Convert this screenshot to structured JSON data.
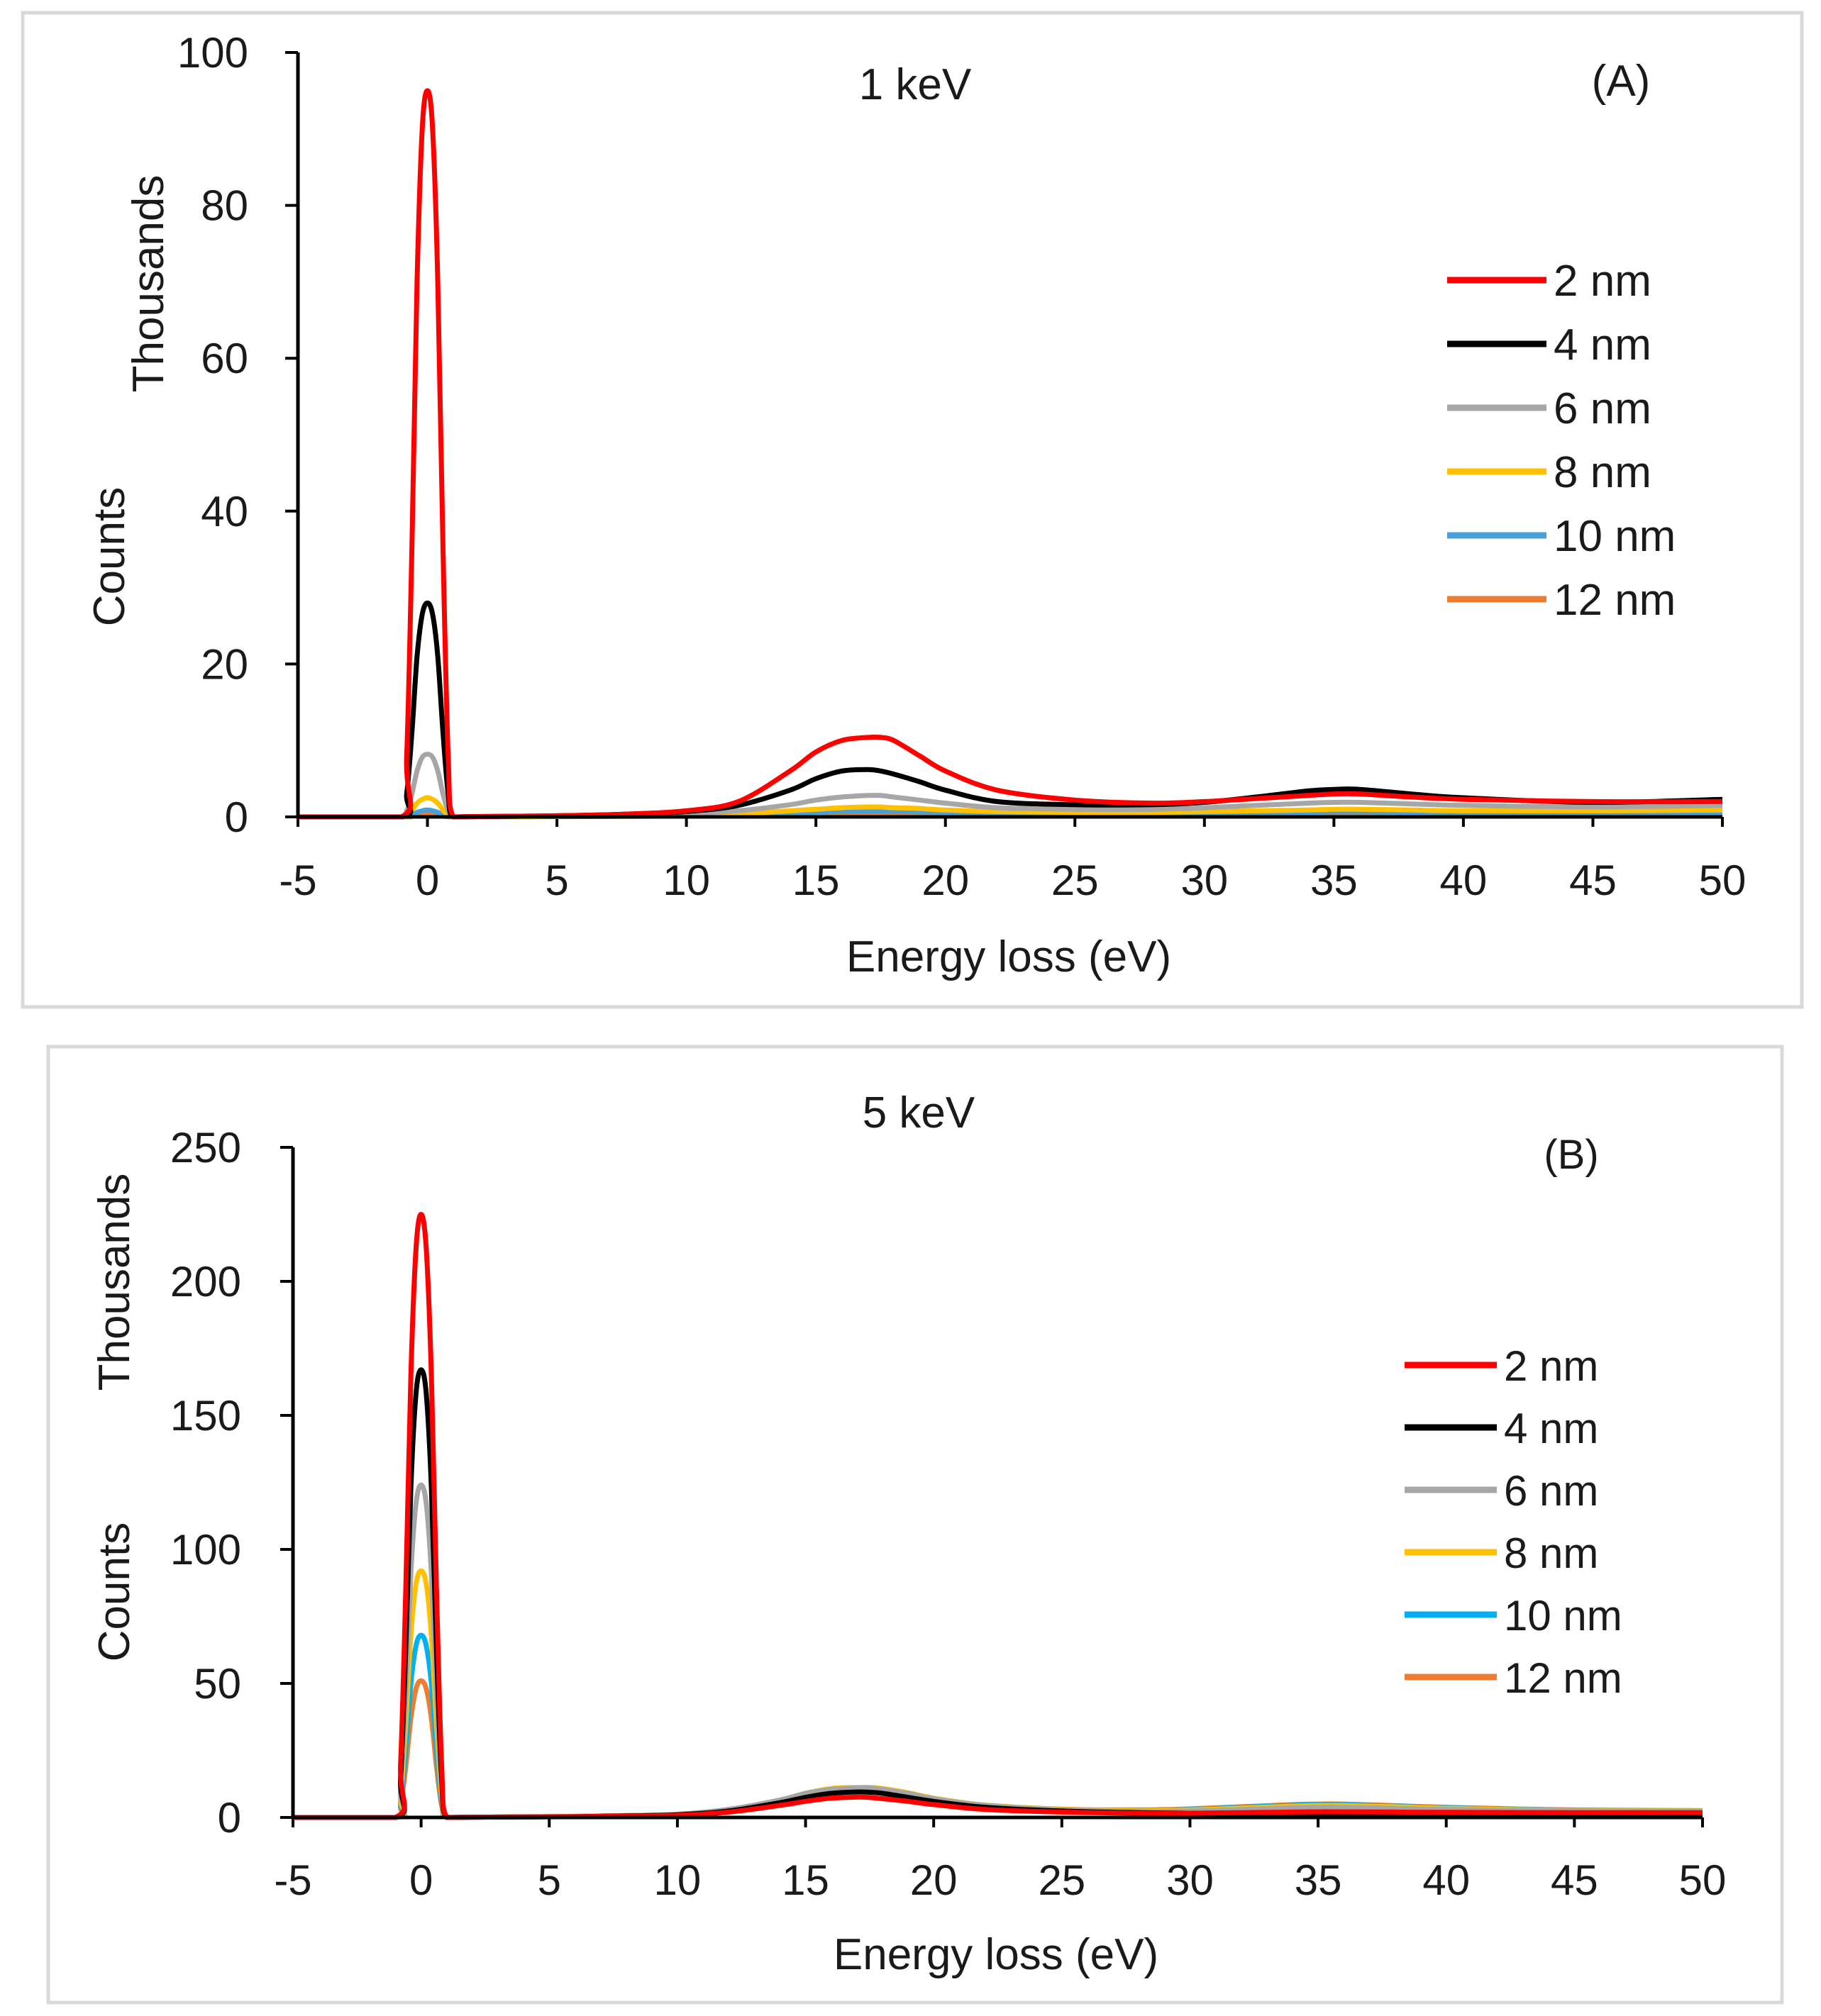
{
  "chart_data": [
    {
      "type": "line",
      "title": "1 keV",
      "panel_label": "(A)",
      "xlabel": "Energy loss (eV)",
      "ylabel": "Counts",
      "y_unit_label": "Thousands",
      "xlim": [
        -5,
        50
      ],
      "ylim": [
        0,
        100
      ],
      "xticks": [
        "-5",
        "0",
        "5",
        "10",
        "15",
        "20",
        "25",
        "30",
        "35",
        "40",
        "45",
        "50"
      ],
      "yticks": [
        "0",
        "20",
        "40",
        "60",
        "80",
        "100"
      ],
      "grid": false,
      "legend_position": "right",
      "x": [
        -5,
        -1,
        -0.8,
        -0.6,
        -0.4,
        -0.2,
        0,
        0.2,
        0.4,
        0.6,
        0.8,
        1,
        2,
        4,
        6,
        8,
        10,
        12,
        14,
        15,
        16,
        17,
        17.5,
        18,
        19,
        20,
        22,
        25,
        28,
        30,
        32,
        34,
        35,
        36,
        38,
        40,
        45,
        50
      ],
      "series": [
        {
          "name": "2 nm",
          "color": "#ff0000",
          "values": [
            0,
            0,
            8,
            35,
            70,
            90,
            95,
            90,
            70,
            35,
            8,
            0,
            0.05,
            0.1,
            0.2,
            0.4,
            0.8,
            2,
            6,
            8.5,
            10,
            10.4,
            10.4,
            10,
            8,
            6,
            3.5,
            2.2,
            1.8,
            2,
            2.4,
            2.8,
            3,
            3,
            2.6,
            2.3,
            2,
            2
          ]
        },
        {
          "name": "4 nm",
          "color": "#000000",
          "values": [
            0,
            0,
            3,
            11,
            21,
            26.5,
            28,
            26.5,
            21,
            11,
            3,
            0,
            0.05,
            0.1,
            0.2,
            0.4,
            0.7,
            1.5,
            3.5,
            5,
            6,
            6.2,
            6,
            5.6,
            4.6,
            3.5,
            2,
            1.6,
            1.6,
            1.9,
            2.6,
            3.4,
            3.6,
            3.6,
            3,
            2.5,
            1.9,
            2.3
          ]
        },
        {
          "name": "6 nm",
          "color": "#a6a6a6",
          "values": [
            0,
            0,
            0.8,
            3,
            6,
            7.8,
            8.2,
            7.8,
            6,
            3,
            0.8,
            0,
            0.05,
            0.1,
            0.1,
            0.2,
            0.4,
            0.8,
            1.6,
            2.2,
            2.6,
            2.8,
            2.8,
            2.6,
            2.2,
            1.8,
            1.2,
            1,
            1,
            1.2,
            1.5,
            1.8,
            1.9,
            1.9,
            1.7,
            1.5,
            1.3,
            1.5
          ]
        },
        {
          "name": "8 nm",
          "color": "#ffc000",
          "values": [
            0,
            0,
            0.2,
            0.9,
            1.8,
            2.3,
            2.5,
            2.3,
            1.8,
            0.9,
            0.2,
            0,
            0.02,
            0.05,
            0.08,
            0.1,
            0.2,
            0.4,
            0.8,
            1,
            1.2,
            1.3,
            1.3,
            1.2,
            1.1,
            0.9,
            0.7,
            0.6,
            0.6,
            0.7,
            0.8,
            0.9,
            1,
            1,
            0.9,
            0.8,
            0.8,
            0.9
          ]
        },
        {
          "name": "10 nm",
          "color": "#4a9fd6",
          "values": [
            0,
            0,
            0.05,
            0.3,
            0.6,
            0.8,
            0.9,
            0.8,
            0.6,
            0.3,
            0.05,
            0,
            0.02,
            0.04,
            0.06,
            0.1,
            0.15,
            0.3,
            0.5,
            0.6,
            0.7,
            0.75,
            0.75,
            0.7,
            0.65,
            0.6,
            0.5,
            0.45,
            0.45,
            0.5,
            0.55,
            0.6,
            0.65,
            0.65,
            0.6,
            0.55,
            0.55,
            0.6
          ]
        },
        {
          "name": "12 nm",
          "color": "#ed7d31",
          "values": [
            0,
            0,
            0.02,
            0.1,
            0.25,
            0.35,
            0.4,
            0.35,
            0.25,
            0.1,
            0.02,
            0,
            0.01,
            0.03,
            0.05,
            0.08,
            0.1,
            0.2,
            0.35,
            0.4,
            0.45,
            0.5,
            0.5,
            0.48,
            0.45,
            0.42,
            0.38,
            0.35,
            0.35,
            0.38,
            0.42,
            0.45,
            0.48,
            0.48,
            0.45,
            0.42,
            0.4,
            0.42
          ]
        }
      ]
    },
    {
      "type": "line",
      "title": "5 keV",
      "panel_label": "(B)",
      "xlabel": "Energy loss (eV)",
      "ylabel": "Counts",
      "y_unit_label": "Thousands",
      "xlim": [
        -5,
        50
      ],
      "ylim": [
        0,
        250
      ],
      "xticks": [
        "-5",
        "0",
        "5",
        "10",
        "15",
        "20",
        "25",
        "30",
        "35",
        "40",
        "45",
        "50"
      ],
      "yticks": [
        "0",
        "50",
        "100",
        "150",
        "200",
        "250"
      ],
      "grid": false,
      "legend_position": "right",
      "x": [
        -5,
        -1,
        -0.8,
        -0.6,
        -0.4,
        -0.2,
        0,
        0.2,
        0.4,
        0.6,
        0.8,
        1,
        2,
        4,
        6,
        8,
        10,
        12,
        14,
        15,
        16,
        17,
        17.5,
        18,
        19,
        20,
        22,
        25,
        28,
        30,
        32,
        34,
        35,
        36,
        38,
        40,
        45,
        50
      ],
      "series": [
        {
          "name": "2 nm",
          "color": "#ff0000",
          "values": [
            0,
            0,
            20,
            85,
            165,
            212,
            225,
            212,
            165,
            85,
            20,
            0,
            0.1,
            0.2,
            0.3,
            0.5,
            0.8,
            2,
            4.5,
            6,
            7.2,
            7.6,
            7.5,
            7,
            6,
            4.8,
            3,
            2,
            1.6,
            1.6,
            1.8,
            2,
            2.1,
            2.1,
            2,
            1.9,
            1.8,
            1.8
          ]
        },
        {
          "name": "4 nm",
          "color": "#000000",
          "values": [
            0,
            0,
            15,
            63,
            123,
            158,
            167,
            158,
            123,
            63,
            15,
            0,
            0.1,
            0.2,
            0.3,
            0.6,
            1,
            2.4,
            5.5,
            7.5,
            9,
            9.5,
            9.4,
            9,
            7.5,
            6,
            3.8,
            2.4,
            1.8,
            1.6,
            1.4,
            1.3,
            1.3,
            1.3,
            1.3,
            1.4,
            1.5,
            1.6
          ]
        },
        {
          "name": "6 nm",
          "color": "#a6a6a6",
          "values": [
            0,
            0,
            11,
            46,
            91,
            117,
            124,
            117,
            91,
            46,
            11,
            0,
            0.1,
            0.2,
            0.4,
            0.7,
            1.2,
            3,
            6.5,
            9,
            10.5,
            11,
            11,
            10.5,
            9,
            7,
            4.5,
            2.8,
            2.2,
            2.4,
            3,
            3.6,
            3.8,
            3.8,
            3.4,
            3,
            2.4,
            2.2
          ]
        },
        {
          "name": "8 nm",
          "color": "#ffc000",
          "values": [
            0,
            0,
            8,
            35,
            68,
            87,
            92,
            87,
            68,
            35,
            8,
            0,
            0.1,
            0.2,
            0.4,
            0.7,
            1.2,
            3,
            6.5,
            9,
            10.8,
            11.2,
            11.2,
            10.8,
            9.2,
            7.2,
            4.6,
            3,
            2.5,
            2.8,
            3.5,
            4.2,
            4.4,
            4.4,
            4,
            3.4,
            2.6,
            2.4
          ]
        },
        {
          "name": "10 nm",
          "color": "#00b0f0",
          "values": [
            0,
            0,
            6,
            25,
            50,
            64,
            68,
            64,
            50,
            25,
            6,
            0,
            0.1,
            0.2,
            0.4,
            0.7,
            1.2,
            3,
            6.4,
            9,
            10.6,
            11,
            11,
            10.6,
            9,
            7,
            4.6,
            3,
            2.6,
            3,
            3.8,
            4.5,
            4.7,
            4.7,
            4.2,
            3.6,
            2.7,
            2.5
          ]
        },
        {
          "name": "12 nm",
          "color": "#ed7d31",
          "values": [
            0,
            0,
            4.5,
            19,
            37,
            48,
            51,
            48,
            37,
            19,
            4.5,
            0,
            0.1,
            0.2,
            0.4,
            0.7,
            1.1,
            2.8,
            6,
            8.5,
            10,
            10.4,
            10.4,
            10,
            8.6,
            6.8,
            4.6,
            3.1,
            2.8,
            3.2,
            4,
            4.8,
            5,
            5,
            4.4,
            3.8,
            2.8,
            2.6
          ]
        }
      ]
    }
  ]
}
